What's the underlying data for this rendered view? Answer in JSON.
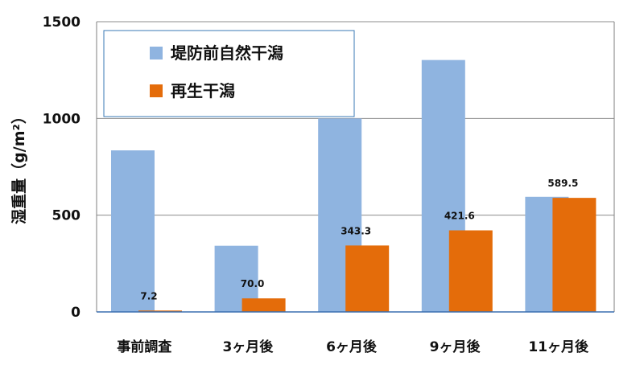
{
  "chart_data": {
    "type": "bar",
    "title": "",
    "xlabel": "",
    "ylabel": "湿重量（g/m²）",
    "ylim": [
      0,
      1500
    ],
    "yticks": [
      0,
      500,
      1000,
      1500
    ],
    "grid": true,
    "legend_position": "top-left",
    "categories": [
      "事前調査",
      "3ヶ月後",
      "6ヶ月後",
      "9ヶ月後",
      "11ヶ月後"
    ],
    "series": [
      {
        "name": "堤防前自然干潟",
        "color": "#8fb4e0",
        "values": [
          835,
          342,
          1000,
          1302,
          595
        ],
        "show_labels": false
      },
      {
        "name": "再生干潟",
        "color": "#e46c0a",
        "values": [
          7.2,
          70.0,
          343.3,
          421.6,
          589.5
        ],
        "show_labels": true
      }
    ],
    "data_labels": [
      "7.2",
      "70.0",
      "343.3",
      "421.6",
      "589.5"
    ],
    "tick_labels": [
      "0",
      "500",
      "1000",
      "1500"
    ]
  }
}
